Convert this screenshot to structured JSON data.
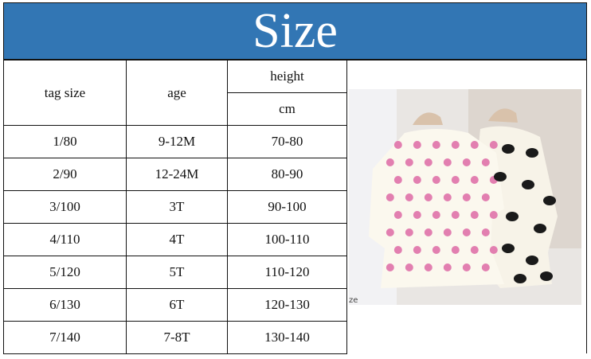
{
  "title": "Size",
  "colors": {
    "banner": "#3276b4",
    "text": "#111111"
  },
  "table": {
    "headers": {
      "tag_size": "tag size",
      "age": "age",
      "height": "height",
      "unit": "cm"
    },
    "rows": [
      {
        "tag": "1/80",
        "age": "9-12M",
        "height": "70-80"
      },
      {
        "tag": "2/90",
        "age": "12-24M",
        "height": "80-90"
      },
      {
        "tag": "3/100",
        "age": "3T",
        "height": "90-100"
      },
      {
        "tag": "4/110",
        "age": "4T",
        "height": "100-110"
      },
      {
        "tag": "5/120",
        "age": "5T",
        "height": "110-120"
      },
      {
        "tag": "6/130",
        "age": "6T",
        "height": "120-130"
      },
      {
        "tag": "7/140",
        "age": "7-8T",
        "height": "130-140"
      }
    ]
  },
  "photo": {
    "description_icon": "product-photo-dresses",
    "tag_text": "ze"
  }
}
